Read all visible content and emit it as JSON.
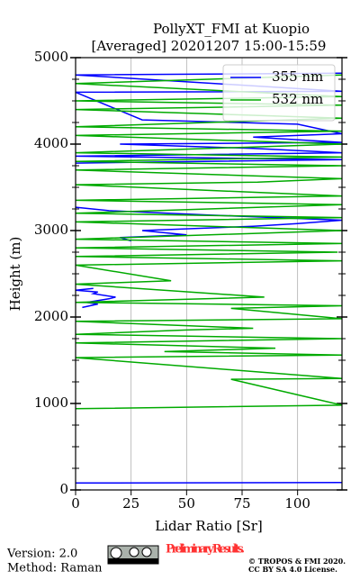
{
  "chart_data": {
    "type": "line",
    "title": "PollyXT_FMI at Kuopio",
    "subtitle": "[Averaged] 20201207 15:00-15:59",
    "x_label": "Lidar Ratio [Sr]",
    "y_label": "Height (m)",
    "xlim": [
      0,
      120
    ],
    "xticks": [
      0,
      25,
      50,
      75,
      100
    ],
    "ylim": [
      0,
      5000
    ],
    "yticks": [
      0,
      1000,
      2000,
      3000,
      4000,
      5000
    ],
    "yticks_minor": [
      250,
      500,
      750,
      1250,
      1500,
      1750,
      2250,
      2500,
      2750,
      3250,
      3500,
      3750,
      4250,
      4500,
      4750
    ],
    "grid": true,
    "legend": "upper right",
    "series": [
      {
        "name": "355 nm",
        "color": "#0000ff",
        "y": [
          80,
          85,
          2090,
          2110,
          2150,
          2170,
          2210,
          2230,
          2270,
          2290,
          2310,
          2330,
          2850,
          2880,
          2920,
          2950,
          3000,
          3050,
          3080,
          3120,
          3180,
          3230,
          3270,
          3750,
          3780,
          3820,
          3860,
          3900,
          3950,
          4000,
          4020,
          4080,
          4120,
          4230,
          4280,
          4600,
          4610,
          4800,
          4820
        ],
        "values": [
          0,
          120,
          null,
          3,
          10,
          5,
          15,
          18,
          8,
          10,
          0,
          8,
          null,
          25,
          20,
          50,
          30,
          80,
          100,
          120,
          60,
          15,
          0,
          null,
          0,
          120,
          0,
          120,
          80,
          20,
          120,
          80,
          120,
          100,
          30,
          0,
          120,
          0,
          120
        ]
      },
      {
        "name": "532 nm",
        "color": "#00aa00",
        "y": [
          940,
          980,
          1280,
          1290,
          1530,
          1560,
          1600,
          1640,
          1700,
          1750,
          1800,
          1850,
          1870,
          1950,
          1980,
          2100,
          2130,
          2170,
          2230,
          2380,
          2420,
          2600,
          2650,
          2700,
          2750,
          2800,
          2850,
          2900,
          3000,
          3100,
          3150,
          3200,
          3300,
          3350,
          3400,
          3530,
          3560,
          3600,
          3700,
          3750,
          3800,
          3850,
          3900,
          4000,
          4100,
          4150,
          4200,
          4300,
          4400,
          4450,
          4500,
          4550,
          4700,
          4800
        ],
        "values": [
          0,
          120,
          70,
          120,
          0,
          120,
          40,
          90,
          0,
          120,
          0,
          50,
          80,
          0,
          120,
          70,
          120,
          0,
          85,
          0,
          43,
          0,
          120,
          0,
          118,
          0,
          120,
          0,
          120,
          0,
          120,
          0,
          120,
          0,
          120,
          0,
          82,
          120,
          0,
          120,
          0,
          120,
          0,
          120,
          0,
          120,
          0,
          120,
          0,
          120,
          0,
          120,
          0,
          120
        ]
      }
    ]
  },
  "footer": {
    "version": "Version: 2.0",
    "method": "Method: Raman",
    "preliminary": "Preliminary Results.",
    "copyright": "© TROPOS & FMI 2020.",
    "license": "CC BY SA 4.0 License."
  }
}
